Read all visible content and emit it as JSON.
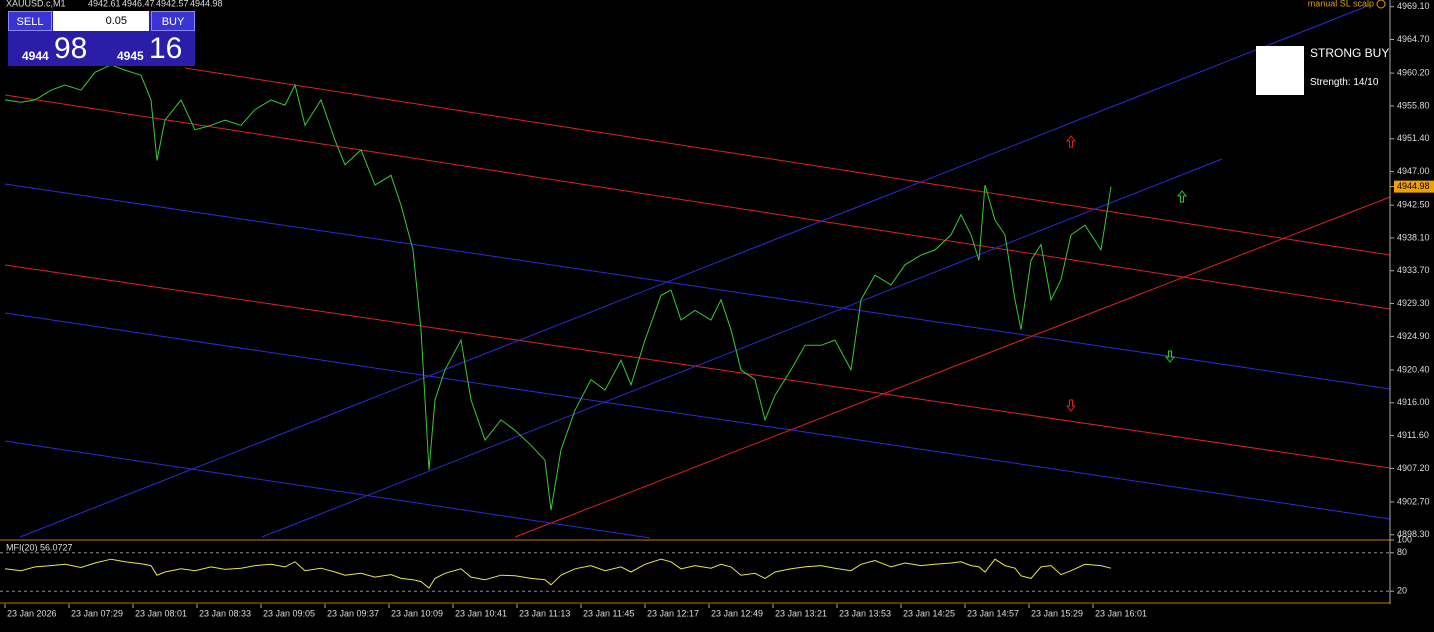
{
  "header": {
    "symbol": "XAUUSD.c,M1",
    "ohlc": [
      4942.61,
      4946.47,
      4942.57,
      4944.98
    ],
    "indicator_name": "manual SL scalp"
  },
  "trade_panel": {
    "sell_label": "SELL",
    "buy_label": "BUY",
    "lot": "0.05",
    "sell_big": "4944",
    "sell_pips": "98",
    "buy_big": "4945",
    "buy_pips": "16"
  },
  "signal": {
    "title": "STRONG BUY",
    "strength": "Strength: 14/10"
  },
  "chart_data": [
    {
      "type": "line",
      "last_price": 4944.98,
      "x": [
        "06:57",
        "07:05",
        "07:12",
        "07:20",
        "07:27",
        "07:35",
        "07:42",
        "07:50",
        "07:57",
        "08:05",
        "08:10",
        "08:13",
        "08:17",
        "08:25",
        "08:32",
        "08:40",
        "08:47",
        "08:55",
        "09:02",
        "09:10",
        "09:17",
        "09:22",
        "09:27",
        "09:35",
        "09:42",
        "09:47",
        "09:55",
        "10:02",
        "10:10",
        "10:15",
        "10:21",
        "10:25",
        "10:29",
        "10:32",
        "10:37",
        "10:45",
        "10:50",
        "10:57",
        "11:05",
        "11:12",
        "11:20",
        "11:27",
        "11:30",
        "11:35",
        "11:42",
        "11:50",
        "11:57",
        "12:05",
        "12:10",
        "12:17",
        "12:25",
        "12:30",
        "12:35",
        "12:42",
        "12:50",
        "12:55",
        "13:00",
        "13:05",
        "13:12",
        "13:17",
        "13:22",
        "13:30",
        "13:37",
        "13:45",
        "13:52",
        "14:00",
        "14:05",
        "14:12",
        "14:20",
        "14:27",
        "14:35",
        "14:42",
        "14:50",
        "14:55",
        "15:00",
        "15:04",
        "15:07",
        "15:12",
        "15:17",
        "15:22",
        "15:25",
        "15:30",
        "15:35",
        "15:40",
        "15:45",
        "15:50",
        "15:57",
        "16:05",
        "16:10"
      ],
      "series": [
        {
          "color": "#33cc33",
          "values": [
            4956.6,
            4956.3,
            4956.6,
            4957.9,
            4958.6,
            4957.9,
            4960.3,
            4961.3,
            4960.6,
            4959.9,
            4956.6,
            4948.5,
            4953.9,
            4956.6,
            4952.6,
            4953.2,
            4953.9,
            4953.2,
            4955.3,
            4956.6,
            4955.9,
            4958.6,
            4953.2,
            4956.6,
            4951.2,
            4947.9,
            4949.9,
            4945.2,
            4946.5,
            4942.5,
            4936.5,
            4925.8,
            4907.0,
            4916.4,
            4920.4,
            4924.4,
            4916.4,
            4911.0,
            4913.7,
            4912.3,
            4910.3,
            4908.3,
            4901.6,
            4909.7,
            4915.0,
            4919.1,
            4917.7,
            4921.7,
            4918.4,
            4924.4,
            4930.4,
            4931.1,
            4927.1,
            4928.4,
            4927.1,
            4929.8,
            4925.8,
            4920.4,
            4919.1,
            4913.7,
            4917.0,
            4920.4,
            4923.7,
            4923.7,
            4924.4,
            4920.4,
            4929.8,
            4933.1,
            4931.8,
            4934.5,
            4935.8,
            4936.5,
            4938.5,
            4941.2,
            4938.5,
            4935.1,
            4945.2,
            4940.5,
            4938.5,
            4929.8,
            4925.8,
            4935.1,
            4937.2,
            4929.8,
            4932.5,
            4938.5,
            4939.8,
            4936.5,
            4944.98
          ]
        }
      ],
      "xlim": [
        "06:55",
        "18:29"
      ],
      "xticks": [
        {
          "value": "06:57",
          "label": "23 Jan 2026"
        },
        {
          "value": "07:29",
          "label": "23 Jan 07:29"
        },
        {
          "value": "08:01",
          "label": "23 Jan 08:01"
        },
        {
          "value": "08:33",
          "label": "23 Jan 08:33"
        },
        {
          "value": "09:05",
          "label": "23 Jan 09:05"
        },
        {
          "value": "09:37",
          "label": "23 Jan 09:37"
        },
        {
          "value": "10:09",
          "label": "23 Jan 10:09"
        },
        {
          "value": "10:41",
          "label": "23 Jan 10:41"
        },
        {
          "value": "11:13",
          "label": "23 Jan 11:13"
        },
        {
          "value": "11:45",
          "label": "23 Jan 11:45"
        },
        {
          "value": "12:17",
          "label": "23 Jan 12:17"
        },
        {
          "value": "12:49",
          "label": "23 Jan 12:49"
        },
        {
          "value": "13:21",
          "label": "23 Jan 13:21"
        },
        {
          "value": "13:53",
          "label": "23 Jan 13:53"
        },
        {
          "value": "14:25",
          "label": "23 Jan 14:25"
        },
        {
          "value": "14:57",
          "label": "23 Jan 14:57"
        },
        {
          "value": "15:29",
          "label": "23 Jan 15:29"
        },
        {
          "value": "16:01",
          "label": "23 Jan 16:01"
        }
      ],
      "ylim": [
        4897.6,
        4970.0
      ],
      "yticks": [
        {
          "value": 4969.1,
          "label": "4969.10"
        },
        {
          "value": 4964.7,
          "label": "4964.70"
        },
        {
          "value": 4960.2,
          "label": "4960.20"
        },
        {
          "value": 4955.8,
          "label": "4955.80"
        },
        {
          "value": 4951.4,
          "label": "4951.40"
        },
        {
          "value": 4947,
          "label": "4947.00"
        },
        {
          "value": 4942.5,
          "label": "4942.50"
        },
        {
          "value": 4938.1,
          "label": "4938.10"
        },
        {
          "value": 4933.7,
          "label": "4933.70"
        },
        {
          "value": 4929.3,
          "label": "4929.30"
        },
        {
          "value": 4924.9,
          "label": "4924.90"
        },
        {
          "value": 4920.4,
          "label": "4920.40"
        },
        {
          "value": 4916,
          "label": "4916.00"
        },
        {
          "value": 4911.6,
          "label": "4911.60"
        },
        {
          "value": 4907.2,
          "label": "4907.20"
        },
        {
          "value": 4902.7,
          "label": "4902.70"
        },
        {
          "value": 4898.3,
          "label": "4898.30"
        }
      ]
    },
    {
      "type": "line",
      "title": "MFI(20) 56.0727",
      "series": [
        {
          "color": "#e6e64c",
          "values": [
            55,
            52,
            58,
            60,
            62,
            57,
            64,
            70,
            66,
            63,
            60,
            45,
            50,
            55,
            52,
            58,
            54,
            56,
            60,
            62,
            58,
            66,
            52,
            56,
            50,
            45,
            48,
            42,
            46,
            40,
            38,
            35,
            25,
            40,
            48,
            55,
            42,
            38,
            45,
            44,
            40,
            38,
            30,
            45,
            55,
            60,
            52,
            58,
            50,
            62,
            70,
            66,
            55,
            60,
            56,
            62,
            58,
            45,
            48,
            40,
            50,
            55,
            58,
            60,
            56,
            52,
            62,
            68,
            58,
            64,
            60,
            62,
            64,
            66,
            60,
            58,
            50,
            70,
            60,
            56,
            44,
            40,
            58,
            60,
            46,
            52,
            62,
            60,
            56
          ]
        }
      ],
      "ylim": [
        0,
        100
      ],
      "yticks": [
        100,
        80,
        20
      ],
      "levels": [
        80,
        20
      ]
    }
  ]
}
